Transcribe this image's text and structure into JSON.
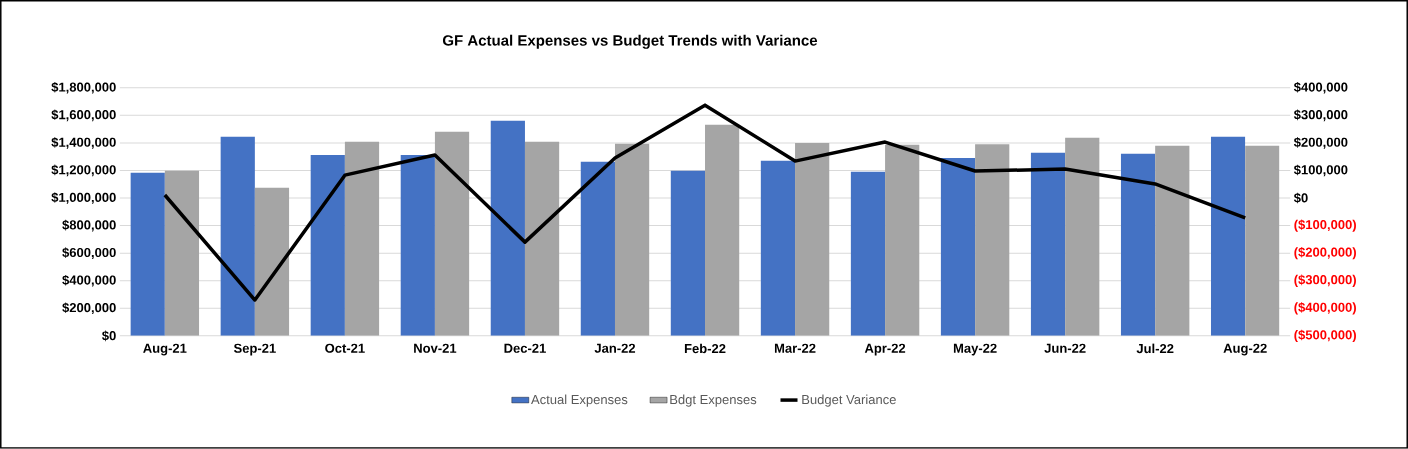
{
  "chart_data": {
    "type": "bar",
    "title": "GF Actual Expenses vs Budget Trends with Variance",
    "categories": [
      "Aug-21",
      "Sep-21",
      "Oct-21",
      "Nov-21",
      "Dec-21",
      "Jan-22",
      "Feb-22",
      "Mar-22",
      "Apr-22",
      "May-22",
      "Jun-22",
      "Jul-22",
      "Aug-22"
    ],
    "series": [
      {
        "name": "Actual Expenses",
        "color": "#4472c4",
        "values": [
          1183000,
          1444000,
          1313000,
          1313000,
          1560000,
          1263000,
          1197000,
          1270000,
          1190000,
          1290000,
          1328000,
          1321000,
          1444000
        ]
      },
      {
        "name": "Bdgt Expenses",
        "color": "#a5a5a5",
        "values": [
          1197000,
          1074000,
          1408000,
          1480000,
          1408000,
          1393000,
          1531000,
          1400000,
          1386000,
          1390000,
          1437000,
          1379000,
          1379000
        ]
      },
      {
        "name": "Budget Variance",
        "type": "line",
        "axis": "y2",
        "color": "#000000",
        "values": [
          11000,
          -370000,
          83000,
          156000,
          -160000,
          145000,
          337000,
          134000,
          203000,
          98000,
          105000,
          51000,
          -72000
        ]
      }
    ],
    "ylim": [
      0,
      1800000
    ],
    "yticks": [
      {
        "value": 0,
        "label": "$0"
      },
      {
        "value": 200000,
        "label": "$200,000"
      },
      {
        "value": 400000,
        "label": "$400,000"
      },
      {
        "value": 600000,
        "label": "$600,000"
      },
      {
        "value": 800000,
        "label": "$800,000"
      },
      {
        "value": 1000000,
        "label": "$1,000,000"
      },
      {
        "value": 1200000,
        "label": "$1,200,000"
      },
      {
        "value": 1400000,
        "label": "$1,400,000"
      },
      {
        "value": 1600000,
        "label": "$1,600,000"
      },
      {
        "value": 1800000,
        "label": "$1,800,000"
      }
    ],
    "y2lim": [
      -500000,
      400000
    ],
    "y2ticks": [
      {
        "value": -500000,
        "label": "($500,000)"
      },
      {
        "value": -400000,
        "label": "($400,000)"
      },
      {
        "value": -300000,
        "label": "($300,000)"
      },
      {
        "value": -200000,
        "label": "($200,000)"
      },
      {
        "value": -100000,
        "label": "($100,000)"
      },
      {
        "value": 0,
        "label": "$0"
      },
      {
        "value": 100000,
        "label": "$100,000"
      },
      {
        "value": 200000,
        "label": "$200,000"
      },
      {
        "value": 300000,
        "label": "$300,000"
      },
      {
        "value": 400000,
        "label": "$400,000"
      }
    ],
    "grid": "y",
    "legend": "bottom"
  }
}
